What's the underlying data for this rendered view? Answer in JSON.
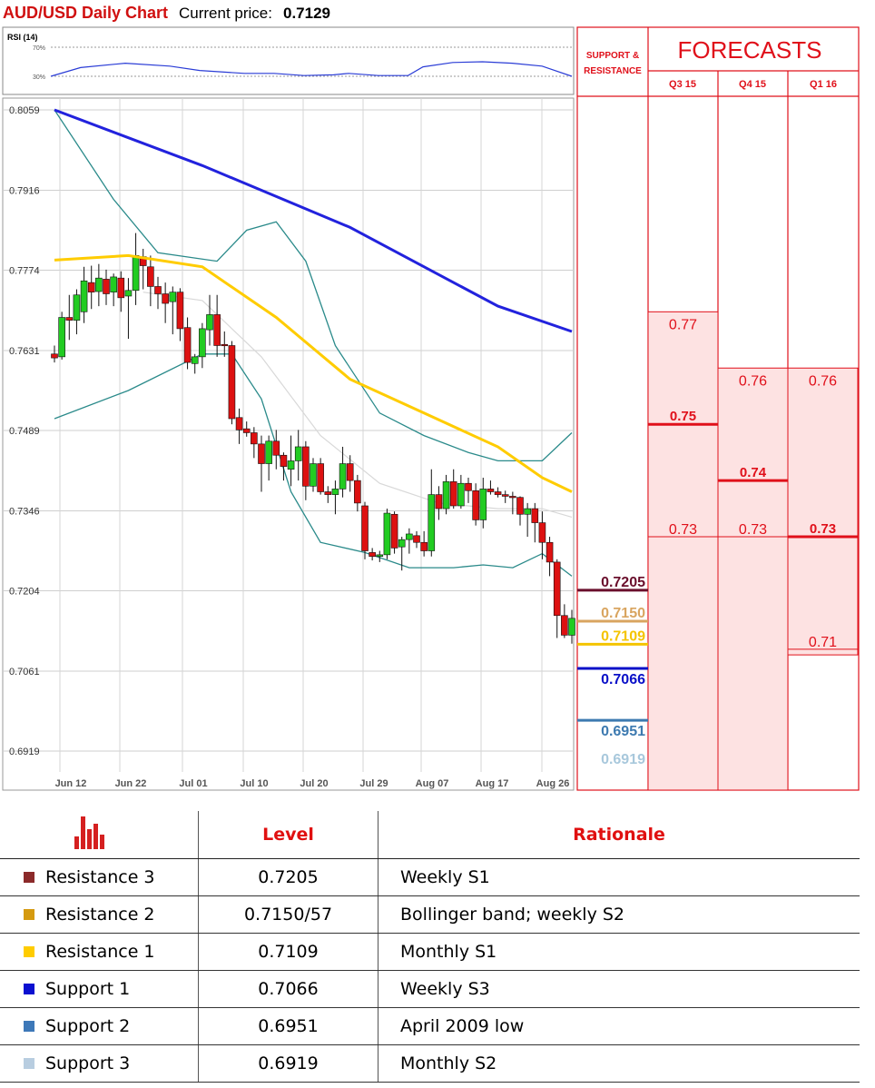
{
  "header": {
    "title": "AUD/USD Daily Chart",
    "price_label": "Current price:",
    "price_value": "0.7129"
  },
  "rsi": {
    "label": "RSI (14)",
    "level_high": "70%",
    "level_low": "30%"
  },
  "forecast_panel": {
    "sr_title_line1": "SUPPORT &",
    "sr_title_line2": "RESISTANCE",
    "title": "FORECASTS",
    "columns": [
      "Q3 15",
      "Q4 15",
      "Q1 16"
    ]
  },
  "colors": {
    "candle_up": "#22cc22",
    "candle_down": "#dd1111",
    "ma_fast": "#ffcc00",
    "ma_slow": "#2222dd",
    "bollinger": "#2a8a8a",
    "forecast_red": "#e0101a",
    "forecast_fill": "#fde2e2",
    "r3": "#6a0f2c",
    "r2": "#d9a560",
    "r1": "#f4c400",
    "s1": "#0a10c8",
    "s2": "#3d7ab0",
    "s3": "#a8c8dc"
  },
  "chart_data": [
    {
      "type": "candlestick",
      "title": "AUD/USD Daily Chart",
      "y_ticks": [
        "0.8059",
        "0.7916",
        "0.7774",
        "0.7631",
        "0.7489",
        "0.7346",
        "0.7204",
        "0.7061",
        "0.6919"
      ],
      "x_ticks": [
        "Jun 12",
        "Jun 22",
        "Jul 01",
        "Jul 10",
        "Jul 20",
        "Jul 29",
        "Aug 07",
        "Aug 17",
        "Aug 26"
      ],
      "ylim": [
        0.6919,
        0.8059
      ],
      "ohlc": [
        [
          0.7625,
          0.764,
          0.761,
          0.7618
        ],
        [
          0.762,
          0.77,
          0.7615,
          0.769
        ],
        [
          0.769,
          0.773,
          0.765,
          0.7685
        ],
        [
          0.7685,
          0.774,
          0.766,
          0.773
        ],
        [
          0.77,
          0.778,
          0.768,
          0.7755
        ],
        [
          0.7752,
          0.7782,
          0.7705,
          0.7735
        ],
        [
          0.7736,
          0.7785,
          0.771,
          0.776
        ],
        [
          0.7758,
          0.7775,
          0.7712,
          0.7732
        ],
        [
          0.7735,
          0.7768,
          0.771,
          0.7762
        ],
        [
          0.776,
          0.7772,
          0.77,
          0.7725
        ],
        [
          0.7728,
          0.776,
          0.7652,
          0.7738
        ],
        [
          0.7738,
          0.784,
          0.7712,
          0.78
        ],
        [
          0.7798,
          0.7812,
          0.774,
          0.7782
        ],
        [
          0.778,
          0.78,
          0.771,
          0.7745
        ],
        [
          0.7745,
          0.7762,
          0.7705,
          0.7732
        ],
        [
          0.7732,
          0.7752,
          0.768,
          0.7715
        ],
        [
          0.7718,
          0.7745,
          0.766,
          0.7735
        ],
        [
          0.7735,
          0.7742,
          0.7648,
          0.767
        ],
        [
          0.7672,
          0.769,
          0.7598,
          0.761
        ],
        [
          0.7608,
          0.7625,
          0.759,
          0.762
        ],
        [
          0.762,
          0.768,
          0.76,
          0.767
        ],
        [
          0.7668,
          0.773,
          0.764,
          0.7695
        ],
        [
          0.7695,
          0.773,
          0.762,
          0.764
        ],
        [
          0.7642,
          0.7665,
          0.762,
          0.764
        ],
        [
          0.764,
          0.7648,
          0.75,
          0.751
        ],
        [
          0.7512,
          0.7528,
          0.7465,
          0.749
        ],
        [
          0.7492,
          0.7505,
          0.7478,
          0.7485
        ],
        [
          0.7485,
          0.7495,
          0.744,
          0.7465
        ],
        [
          0.7465,
          0.748,
          0.738,
          0.743
        ],
        [
          0.743,
          0.748,
          0.74,
          0.747
        ],
        [
          0.747,
          0.749,
          0.742,
          0.7445
        ],
        [
          0.7445,
          0.745,
          0.74,
          0.7425
        ],
        [
          0.742,
          0.748,
          0.739,
          0.7435
        ],
        [
          0.7435,
          0.749,
          0.74,
          0.746
        ],
        [
          0.746,
          0.747,
          0.7365,
          0.739
        ],
        [
          0.739,
          0.744,
          0.738,
          0.743
        ],
        [
          0.743,
          0.744,
          0.7375,
          0.738
        ],
        [
          0.738,
          0.739,
          0.736,
          0.7375
        ],
        [
          0.7375,
          0.74,
          0.734,
          0.7385
        ],
        [
          0.7385,
          0.746,
          0.737,
          0.743
        ],
        [
          0.743,
          0.7445,
          0.738,
          0.74
        ],
        [
          0.74,
          0.741,
          0.7345,
          0.736
        ],
        [
          0.7355,
          0.7362,
          0.726,
          0.7275
        ],
        [
          0.7272,
          0.728,
          0.7258,
          0.7265
        ],
        [
          0.7265,
          0.7275,
          0.7255,
          0.7268
        ],
        [
          0.7268,
          0.735,
          0.726,
          0.7342
        ],
        [
          0.734,
          0.7345,
          0.727,
          0.728
        ],
        [
          0.7282,
          0.73,
          0.724,
          0.7295
        ],
        [
          0.7295,
          0.7315,
          0.727,
          0.7305
        ],
        [
          0.7302,
          0.731,
          0.728,
          0.729
        ],
        [
          0.729,
          0.731,
          0.7265,
          0.7275
        ],
        [
          0.7275,
          0.742,
          0.7265,
          0.7375
        ],
        [
          0.7375,
          0.739,
          0.733,
          0.735
        ],
        [
          0.735,
          0.741,
          0.734,
          0.7398
        ],
        [
          0.7398,
          0.742,
          0.735,
          0.7355
        ],
        [
          0.7355,
          0.741,
          0.735,
          0.7395
        ],
        [
          0.7395,
          0.7405,
          0.736,
          0.7382
        ],
        [
          0.7382,
          0.7395,
          0.732,
          0.733
        ],
        [
          0.733,
          0.7405,
          0.7315,
          0.7385
        ],
        [
          0.7385,
          0.74,
          0.7375,
          0.738
        ],
        [
          0.738,
          0.7388,
          0.737,
          0.7375
        ],
        [
          0.7375,
          0.7382,
          0.736,
          0.7372
        ],
        [
          0.7372,
          0.738,
          0.734,
          0.737
        ],
        [
          0.737,
          0.7372,
          0.732,
          0.734
        ],
        [
          0.734,
          0.736,
          0.73,
          0.735
        ],
        [
          0.735,
          0.736,
          0.729,
          0.7325
        ],
        [
          0.7325,
          0.7345,
          0.726,
          0.729
        ],
        [
          0.729,
          0.73,
          0.723,
          0.7255
        ],
        [
          0.7255,
          0.726,
          0.712,
          0.716
        ],
        [
          0.716,
          0.718,
          0.712,
          0.7125
        ],
        [
          0.7125,
          0.717,
          0.711,
          0.7155
        ]
      ],
      "ma_slow": [
        [
          0,
          0.8059
        ],
        [
          20,
          0.796
        ],
        [
          40,
          0.785
        ],
        [
          60,
          0.771
        ],
        [
          70,
          0.7665
        ]
      ],
      "ma_fast": [
        [
          0,
          0.7792
        ],
        [
          10,
          0.78
        ],
        [
          20,
          0.778
        ],
        [
          30,
          0.769
        ],
        [
          40,
          0.758
        ],
        [
          50,
          0.752
        ],
        [
          60,
          0.746
        ],
        [
          66,
          0.7405
        ],
        [
          70,
          0.738
        ]
      ],
      "bb_upper": [
        [
          0,
          0.8059
        ],
        [
          8,
          0.79
        ],
        [
          14,
          0.7805
        ],
        [
          22,
          0.779
        ],
        [
          26,
          0.7845
        ],
        [
          30,
          0.786
        ],
        [
          34,
          0.779
        ],
        [
          38,
          0.764
        ],
        [
          44,
          0.752
        ],
        [
          50,
          0.748
        ],
        [
          56,
          0.745
        ],
        [
          60,
          0.7435
        ],
        [
          66,
          0.7435
        ],
        [
          70,
          0.7485
        ]
      ],
      "bb_lower": [
        [
          0,
          0.751
        ],
        [
          10,
          0.756
        ],
        [
          20,
          0.7625
        ],
        [
          24,
          0.7625
        ],
        [
          28,
          0.7545
        ],
        [
          32,
          0.738
        ],
        [
          36,
          0.729
        ],
        [
          42,
          0.7272
        ],
        [
          48,
          0.7245
        ],
        [
          54,
          0.7245
        ],
        [
          58,
          0.725
        ],
        [
          62,
          0.7245
        ],
        [
          66,
          0.727
        ],
        [
          70,
          0.723
        ]
      ],
      "bb_mid": [
        [
          12,
          0.7735
        ],
        [
          20,
          0.772
        ],
        [
          28,
          0.762
        ],
        [
          36,
          0.748
        ],
        [
          44,
          0.7395
        ],
        [
          52,
          0.736
        ],
        [
          60,
          0.735
        ],
        [
          66,
          0.735
        ],
        [
          70,
          0.7335
        ]
      ],
      "rsi": [
        [
          0,
          30
        ],
        [
          4,
          42
        ],
        [
          10,
          48
        ],
        [
          16,
          44
        ],
        [
          20,
          38
        ],
        [
          26,
          34
        ],
        [
          30,
          34
        ],
        [
          34,
          31
        ],
        [
          38,
          32
        ],
        [
          40,
          34
        ],
        [
          44,
          31
        ],
        [
          48,
          31
        ],
        [
          50,
          43
        ],
        [
          54,
          49
        ],
        [
          58,
          50
        ],
        [
          62,
          48
        ],
        [
          66,
          44
        ],
        [
          70,
          30
        ]
      ]
    },
    {
      "type": "table",
      "title": "FORECASTS",
      "columns": [
        "Q3 15",
        "Q4 15",
        "Q1 16"
      ],
      "ranges": [
        {
          "period": "Q3 15",
          "high": "0.77",
          "mid": "0.75",
          "low": "0.73"
        },
        {
          "period": "Q4 15",
          "high": "0.76",
          "mid": "0.74",
          "low": "0.73"
        },
        {
          "period": "Q1 16",
          "high": "0.76",
          "mid": "0.73",
          "low": "0.71"
        }
      ],
      "support_resistance": [
        {
          "value": "0.7205",
          "color": "#6a0f2c"
        },
        {
          "value": "0.7150",
          "color": "#d9a560"
        },
        {
          "value": "0.7109",
          "color": "#f4c400"
        },
        {
          "value": "0.7066",
          "color": "#0a10c8"
        },
        {
          "value": "0.6951",
          "color": "#3d7ab0"
        },
        {
          "value": "0.6919",
          "color": "#a8c8dc"
        }
      ]
    }
  ],
  "levels_table": {
    "headers": {
      "level": "Level",
      "rationale": "Rationale"
    },
    "rows": [
      {
        "name": "Resistance 3",
        "value": "0.7205",
        "rationale": "Weekly S1",
        "color": "#8b2a2a"
      },
      {
        "name": "Resistance 2",
        "value": "0.7150/57",
        "rationale": "Bollinger band; weekly S2",
        "color": "#d59a10"
      },
      {
        "name": "Resistance 1",
        "value": "0.7109",
        "rationale": "Monthly S1",
        "color": "#ffcc00"
      },
      {
        "name": "Support 1",
        "value": "0.7066",
        "rationale": "Weekly S3",
        "color": "#0a10d0"
      },
      {
        "name": "Support 2",
        "value": "0.6951",
        "rationale": "April 2009 low",
        "color": "#3d78b8"
      },
      {
        "name": "Support 3",
        "value": "0.6919",
        "rationale": "Monthly S2",
        "color": "#b8cde0"
      }
    ]
  }
}
